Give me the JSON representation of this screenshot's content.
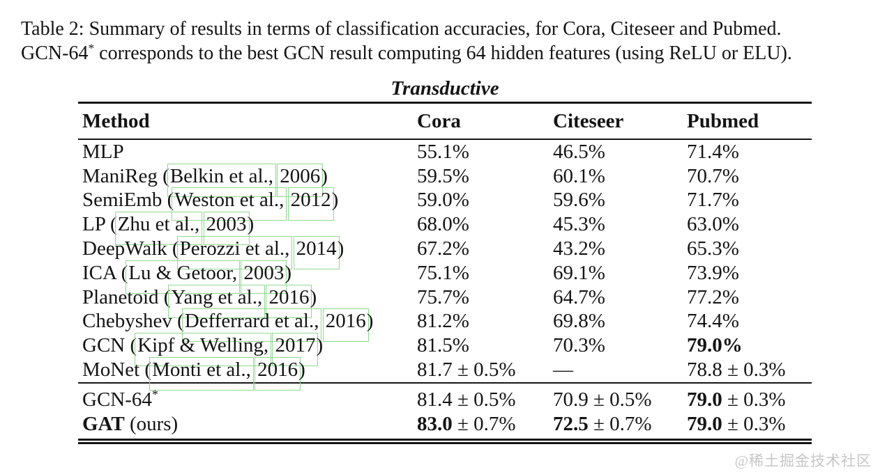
{
  "caption": {
    "line1": [
      {
        "t": "Table 2: Summary of results in terms of classification accuracies, for Cora, Citeseer and Pubmed."
      }
    ],
    "line2": [
      {
        "t": "GCN-64"
      },
      {
        "t": "*",
        "sup": true
      },
      {
        "t": " corresponds to the best GCN result computing 64 hidden features (using ReLU or ELU)."
      }
    ]
  },
  "table": {
    "section_label": "Transductive",
    "columns": [
      "Method",
      "Cora",
      "Citeseer",
      "Pubmed"
    ],
    "link_box_color": "#8fd88f",
    "rule_color": "#151515",
    "rows": [
      {
        "cells": [
          [
            {
              "t": "MLP"
            }
          ],
          [
            {
              "t": "55.1%"
            }
          ],
          [
            {
              "t": "46.5%"
            }
          ],
          [
            {
              "t": "71.4%"
            }
          ]
        ]
      },
      {
        "cells": [
          [
            {
              "t": "ManiReg ("
            },
            {
              "t": "Belkin et al.,",
              "link": true
            },
            {
              "t": " "
            },
            {
              "t": "2006",
              "link": true
            },
            {
              "t": ")"
            }
          ],
          [
            {
              "t": "59.5%"
            }
          ],
          [
            {
              "t": "60.1%"
            }
          ],
          [
            {
              "t": "70.7%"
            }
          ]
        ]
      },
      {
        "cells": [
          [
            {
              "t": "SemiEmb ("
            },
            {
              "t": "Weston et al.,",
              "link": true
            },
            {
              "t": " "
            },
            {
              "t": "2012",
              "link": true
            },
            {
              "t": ")"
            }
          ],
          [
            {
              "t": "59.0%"
            }
          ],
          [
            {
              "t": "59.6%"
            }
          ],
          [
            {
              "t": "71.7%"
            }
          ]
        ]
      },
      {
        "cells": [
          [
            {
              "t": "LP ("
            },
            {
              "t": "Zhu et al.,",
              "link": true
            },
            {
              "t": " "
            },
            {
              "t": "2003",
              "link": true
            },
            {
              "t": ")"
            }
          ],
          [
            {
              "t": "68.0%"
            }
          ],
          [
            {
              "t": "45.3%"
            }
          ],
          [
            {
              "t": "63.0%"
            }
          ]
        ]
      },
      {
        "cells": [
          [
            {
              "t": "DeepWalk ("
            },
            {
              "t": "Perozzi et al.,",
              "link": true
            },
            {
              "t": " "
            },
            {
              "t": "2014",
              "link": true
            },
            {
              "t": ")"
            }
          ],
          [
            {
              "t": "67.2%"
            }
          ],
          [
            {
              "t": "43.2%"
            }
          ],
          [
            {
              "t": "65.3%"
            }
          ]
        ]
      },
      {
        "cells": [
          [
            {
              "t": "ICA ("
            },
            {
              "t": "Lu & Getoor,",
              "link": true
            },
            {
              "t": " "
            },
            {
              "t": "2003",
              "link": true
            },
            {
              "t": ")"
            }
          ],
          [
            {
              "t": "75.1%"
            }
          ],
          [
            {
              "t": "69.1%"
            }
          ],
          [
            {
              "t": "73.9%"
            }
          ]
        ]
      },
      {
        "cells": [
          [
            {
              "t": "Planetoid ("
            },
            {
              "t": "Yang et al.,",
              "link": true
            },
            {
              "t": " "
            },
            {
              "t": "2016",
              "link": true
            },
            {
              "t": ")"
            }
          ],
          [
            {
              "t": "75.7%"
            }
          ],
          [
            {
              "t": "64.7%"
            }
          ],
          [
            {
              "t": "77.2%"
            }
          ]
        ]
      },
      {
        "cells": [
          [
            {
              "t": "Chebyshev ("
            },
            {
              "t": "Defferrard et al.,",
              "link": true
            },
            {
              "t": " "
            },
            {
              "t": "2016",
              "link": true
            },
            {
              "t": ")"
            }
          ],
          [
            {
              "t": "81.2%"
            }
          ],
          [
            {
              "t": "69.8%"
            }
          ],
          [
            {
              "t": "74.4%"
            }
          ]
        ]
      },
      {
        "cells": [
          [
            {
              "t": "GCN ("
            },
            {
              "t": "Kipf & Welling,",
              "link": true
            },
            {
              "t": " "
            },
            {
              "t": "2017",
              "link": true
            },
            {
              "t": ")"
            }
          ],
          [
            {
              "t": "81.5%"
            }
          ],
          [
            {
              "t": "70.3%"
            }
          ],
          [
            {
              "t": "79.0%",
              "bold": true
            }
          ]
        ]
      },
      {
        "cells": [
          [
            {
              "t": "MoNet ("
            },
            {
              "t": "Monti et al.,",
              "link": true
            },
            {
              "t": " "
            },
            {
              "t": "2016",
              "link": true
            },
            {
              "t": ")"
            }
          ],
          [
            {
              "t": "81.7 ± 0.5%"
            }
          ],
          [
            {
              "t": "—"
            }
          ],
          [
            {
              "t": "78.8 ± 0.3%"
            }
          ]
        ]
      }
    ],
    "footer_rows": [
      {
        "cells": [
          [
            {
              "t": "GCN-64"
            },
            {
              "t": "*",
              "sup": true
            }
          ],
          [
            {
              "t": "81.4 ± 0.5%"
            }
          ],
          [
            {
              "t": "70.9 ± 0.5%"
            }
          ],
          [
            {
              "t": "79.0",
              "bold": true
            },
            {
              "t": " ± 0.3%"
            }
          ]
        ]
      },
      {
        "cells": [
          [
            {
              "t": "GAT",
              "bold": true
            },
            {
              "t": " (ours)"
            }
          ],
          [
            {
              "t": "83.0",
              "bold": true
            },
            {
              "t": " ± 0.7%"
            }
          ],
          [
            {
              "t": "72.5",
              "bold": true
            },
            {
              "t": " ± 0.7%"
            }
          ],
          [
            {
              "t": "79.0",
              "bold": true
            },
            {
              "t": " ± 0.3%"
            }
          ]
        ]
      }
    ]
  },
  "watermark": "@稀土掘金技术社区"
}
